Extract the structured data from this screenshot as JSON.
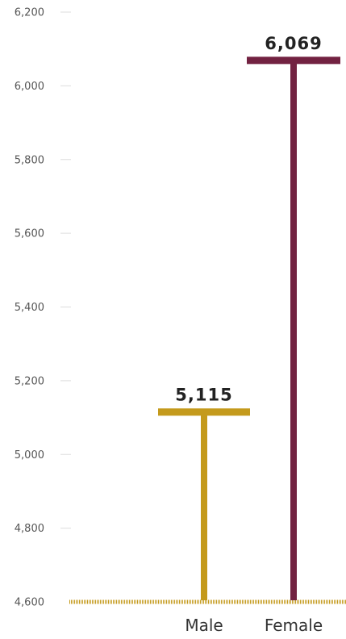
{
  "chart_data": {
    "type": "bar",
    "title": "",
    "xlabel": "",
    "ylabel": "",
    "ylim": [
      4600,
      6200
    ],
    "yticks": [
      4600,
      4800,
      5000,
      5200,
      5400,
      5600,
      5800,
      6000,
      6200
    ],
    "ytick_labels": [
      "4,600",
      "4,800",
      "5,000",
      "5,200",
      "5,400",
      "5,600",
      "5,800",
      "6,000",
      "6,200"
    ],
    "categories": [
      "Male",
      "Female"
    ],
    "values": [
      5115,
      6069
    ],
    "value_labels": [
      "5,115",
      "6,069"
    ],
    "colors": [
      "#C49A1C",
      "#722241"
    ],
    "baseline_color": "#C49A1C",
    "grid": false,
    "legend": "none",
    "mark_style": "T-shaped bars with horizontal cap at value"
  }
}
